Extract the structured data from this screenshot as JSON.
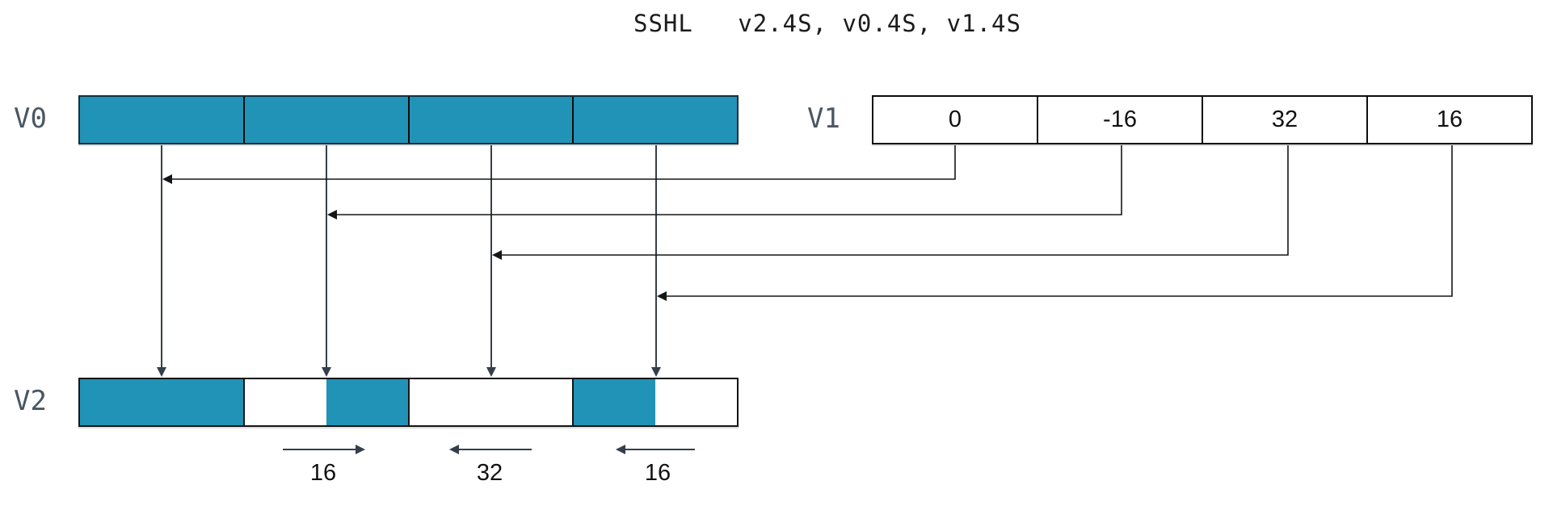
{
  "title": "SSHL   v2.4S, v0.4S, v1.4S",
  "registers": {
    "v0": {
      "name": "V0",
      "lanes": [
        {
          "fill": "full",
          "value": ""
        },
        {
          "fill": "full",
          "value": ""
        },
        {
          "fill": "full",
          "value": ""
        },
        {
          "fill": "full",
          "value": ""
        }
      ]
    },
    "v1": {
      "name": "V1",
      "lanes": [
        {
          "fill": "empty",
          "value": "0"
        },
        {
          "fill": "empty",
          "value": "-16"
        },
        {
          "fill": "empty",
          "value": "32"
        },
        {
          "fill": "empty",
          "value": "16"
        }
      ]
    },
    "v2": {
      "name": "V2",
      "lanes": [
        {
          "fill": "full",
          "value": ""
        },
        {
          "fill": "right-half",
          "value": ""
        },
        {
          "fill": "empty",
          "value": ""
        },
        {
          "fill": "left-half",
          "value": ""
        }
      ]
    }
  },
  "shift_annotations": [
    {
      "label": "16",
      "direction": "right"
    },
    {
      "label": "32",
      "direction": "left"
    },
    {
      "label": "16",
      "direction": "left"
    }
  ],
  "colors": {
    "lane_fill": "#2193B7",
    "arrow": "#333F4B",
    "connector": "#161616",
    "register_label": "#4A5663"
  }
}
